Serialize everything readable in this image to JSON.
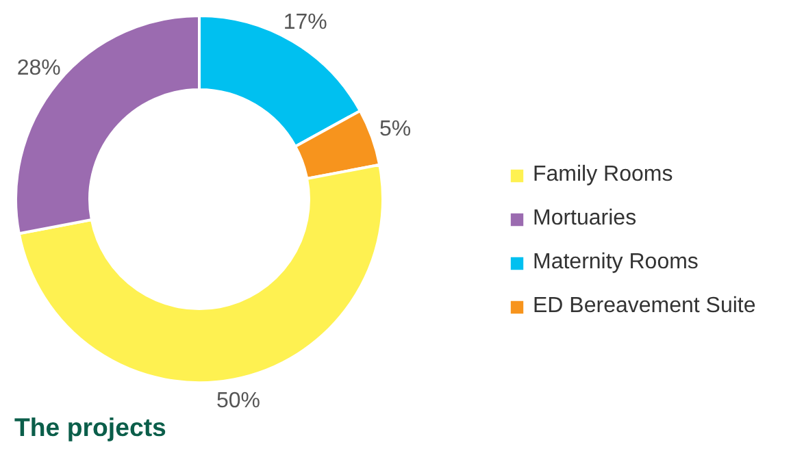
{
  "chart_data": {
    "type": "donut",
    "title": "The projects",
    "categories": [
      "Family Rooms",
      "Mortuaries",
      "Maternity Rooms",
      "ED Bereavement Suite"
    ],
    "values": [
      50,
      28,
      17,
      5
    ],
    "colors": [
      "#fef151",
      "#9b6bb0",
      "#00c0f0",
      "#f7941d"
    ],
    "value_labels": [
      "50%",
      "28%",
      "17%",
      "5%"
    ],
    "legend": "right"
  }
}
